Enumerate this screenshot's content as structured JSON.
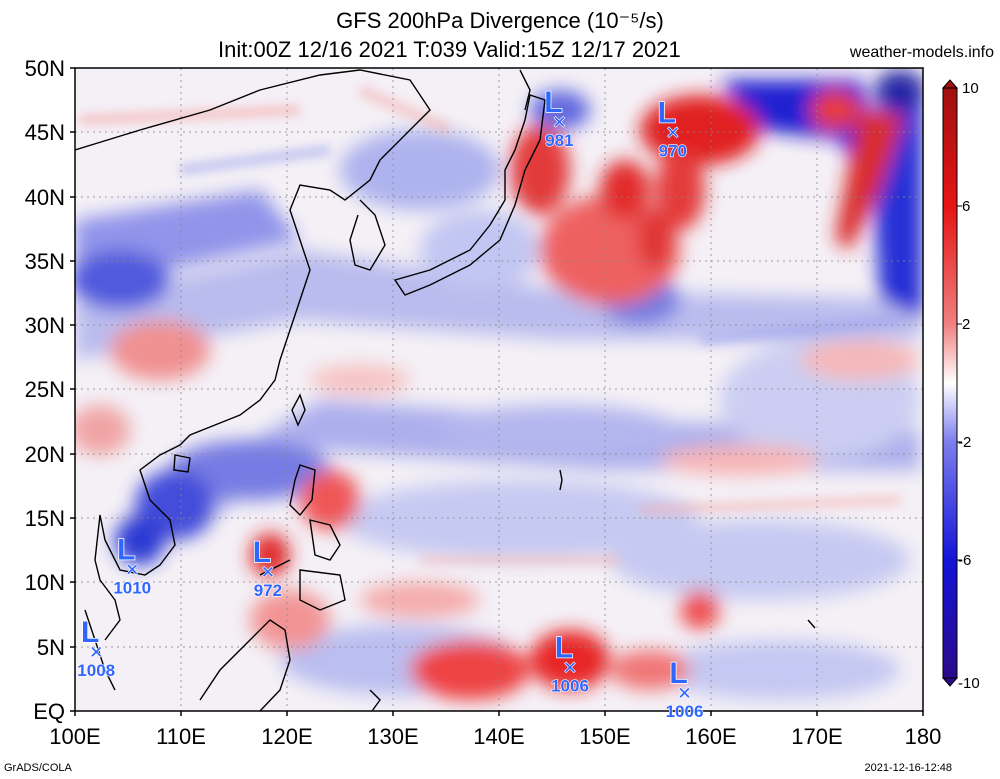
{
  "title": {
    "line1": "GFS 200hPa Divergence (10⁻⁵/s)",
    "line2": "Init:00Z 12/16 2021 T:039 Valid:15Z 12/17 2021",
    "site": "weather-models.info"
  },
  "footer": {
    "left": "GrADS/COLA",
    "right": "2021-12-16-12:48"
  },
  "axes": {
    "lat_labels": [
      "50N",
      "45N",
      "40N",
      "35N",
      "30N",
      "25N",
      "20N",
      "15N",
      "10N",
      "5N",
      "EQ"
    ],
    "lon_labels": [
      "100E",
      "110E",
      "120E",
      "130E",
      "140E",
      "150E",
      "160E",
      "170E",
      "180"
    ],
    "lat_range": [
      0,
      50
    ],
    "lon_range": [
      100,
      180
    ],
    "grid": "dotted"
  },
  "colorbar": {
    "labels": [
      "10",
      "6",
      "2",
      "-2",
      "-6",
      "-10"
    ],
    "range": [
      -10,
      10
    ],
    "colors": [
      "#2a0a8a",
      "#1414d8",
      "#7d7dee",
      "#ffffff",
      "#f08080",
      "#e61414",
      "#a01010"
    ]
  },
  "lows": [
    {
      "label": "L",
      "pressure": "981",
      "lat": 45.8,
      "lon": 145.7
    },
    {
      "label": "L",
      "pressure": "970",
      "lat": 45.0,
      "lon": 156.4
    },
    {
      "label": "L",
      "pressure": "1010",
      "lat": 11.0,
      "lon": 105.4
    },
    {
      "label": "L",
      "pressure": "972",
      "lat": 10.8,
      "lon": 118.2
    },
    {
      "label": "L",
      "pressure": "1008",
      "lat": 4.6,
      "lon": 102.0
    },
    {
      "label": "L",
      "pressure": "1006",
      "lat": 3.4,
      "lon": 146.7
    },
    {
      "label": "L",
      "pressure": "1006",
      "lat": 1.4,
      "lon": 157.5
    }
  ]
}
